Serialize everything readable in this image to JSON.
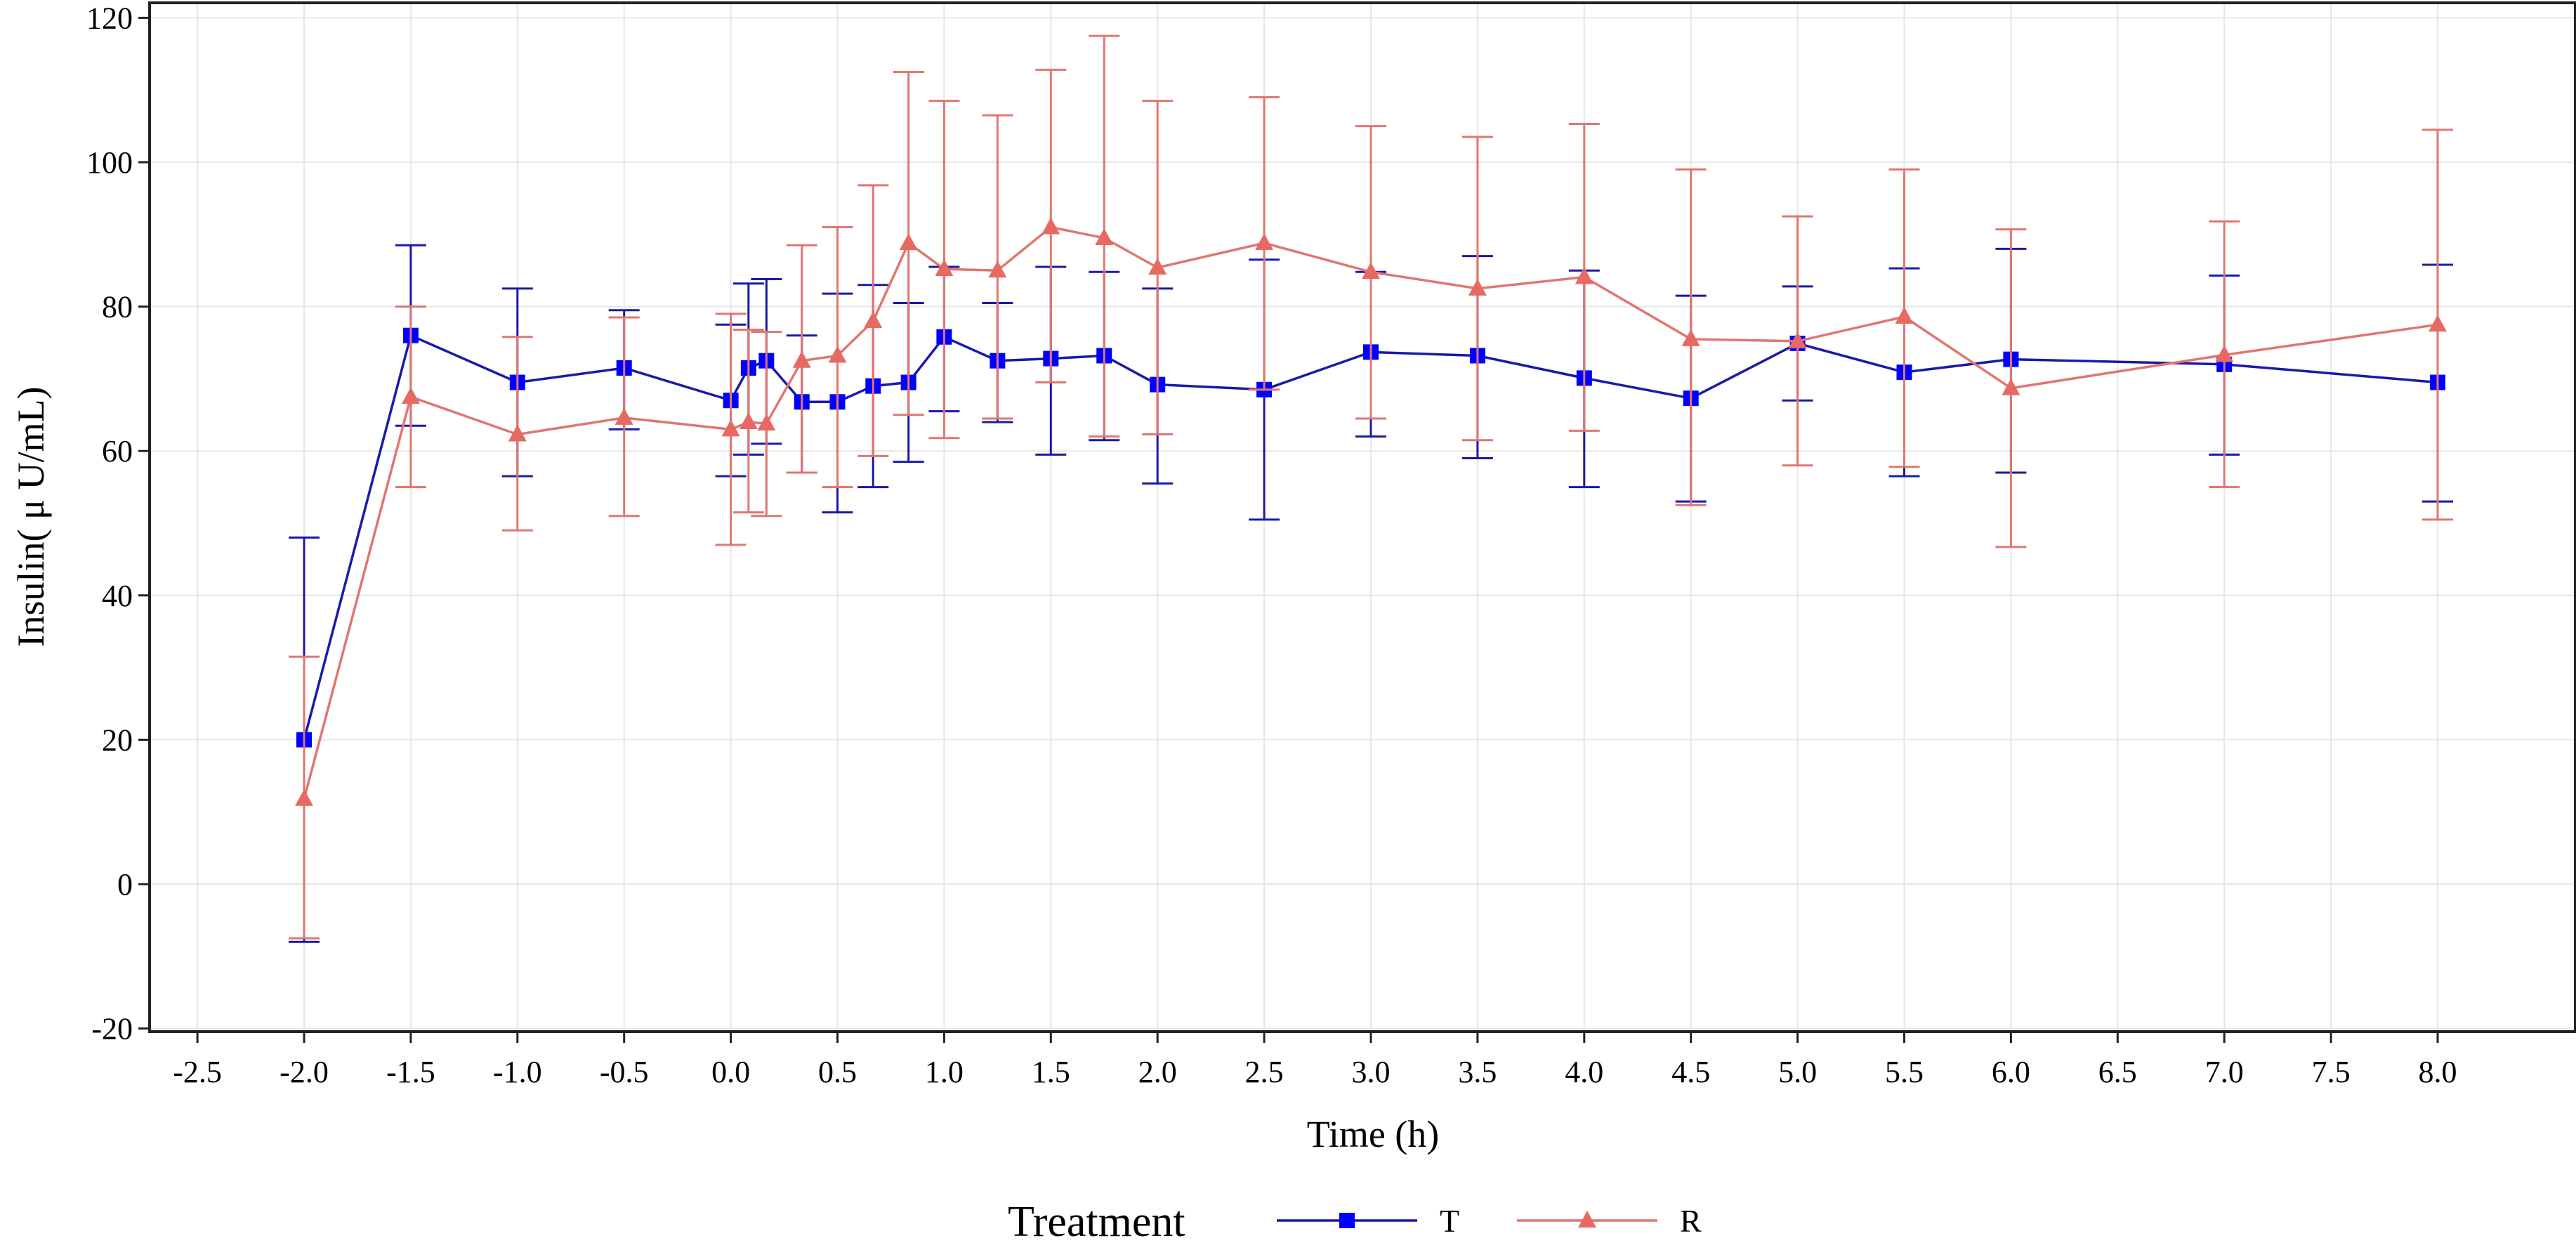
{
  "chart_data": {
    "type": "line",
    "title": "",
    "xlabel": "Time (h)",
    "ylabel": "Insulin( μ U/mL)",
    "xlim": [
      -2.5,
      8.5
    ],
    "ylim": [
      -20,
      120
    ],
    "x_ticks": [
      "-2.5",
      "-2.0",
      "-1.5",
      "-1.0",
      "-0.5",
      "0.0",
      "0.5",
      "1.0",
      "1.5",
      "2.0",
      "2.5",
      "3.0",
      "3.5",
      "4.0",
      "4.5",
      "5.0",
      "5.5",
      "6.0",
      "6.5",
      "7.0",
      "7.5",
      "8.0"
    ],
    "x_tick_values": [
      -2.5,
      -2.0,
      -1.5,
      -1.0,
      -0.5,
      0.0,
      0.5,
      1.0,
      1.5,
      2.0,
      2.5,
      3.0,
      3.5,
      4.0,
      4.5,
      5.0,
      5.5,
      6.0,
      6.5,
      7.0,
      7.5,
      8.0
    ],
    "y_ticks": [
      "-20",
      "0",
      "20",
      "40",
      "60",
      "80",
      "100",
      "120"
    ],
    "y_tick_values": [
      -20,
      0,
      20,
      40,
      60,
      80,
      100,
      120
    ],
    "grid": true,
    "legend": {
      "title": "Treatment",
      "position": "bottom-center"
    },
    "x": [
      -2.0,
      -1.5,
      -1.0,
      -0.5,
      0.0,
      0.083,
      0.167,
      0.333,
      0.5,
      0.667,
      0.833,
      1.0,
      1.25,
      1.5,
      1.75,
      2.0,
      2.5,
      3.0,
      3.5,
      4.0,
      4.5,
      5.0,
      5.5,
      6.0,
      7.0,
      8.0
    ],
    "series": [
      {
        "name": "T",
        "color": "#1a1aa8",
        "marker_color": "#0000ff",
        "marker": "square",
        "values": [
          20,
          76,
          69.5,
          71.5,
          67,
          71.5,
          72.5,
          66.8,
          66.8,
          69,
          69.5,
          75.8,
          72.5,
          72.8,
          73.2,
          69.2,
          68.5,
          73.7,
          73.2,
          70.1,
          67.3,
          74.9,
          70.9,
          72.7,
          72,
          69.5
        ],
        "error_low": [
          -8,
          63.5,
          56.5,
          63,
          56.5,
          59.5,
          61,
          57,
          51.5,
          55,
          58.5,
          65.5,
          64,
          59.5,
          61.5,
          55.5,
          50.5,
          62,
          59,
          55,
          53,
          67,
          56.5,
          57,
          59.5,
          53
        ],
        "error_high": [
          48,
          88.5,
          82.5,
          79.5,
          77.5,
          83.2,
          83.8,
          76,
          81.8,
          83,
          80.5,
          85.5,
          80.5,
          85.5,
          84.8,
          82.5,
          86.5,
          84.8,
          87,
          85,
          81.5,
          82.8,
          85.3,
          88,
          84.3,
          85.8
        ]
      },
      {
        "name": "R",
        "color": "#e07670",
        "marker_color": "#e66a63",
        "marker": "triangle",
        "values": [
          11.8,
          67.5,
          62.3,
          64.6,
          63,
          64,
          63.8,
          72.5,
          73.2,
          78,
          88.8,
          85.2,
          85,
          91,
          89.5,
          85.4,
          88.8,
          84.8,
          82.5,
          84.1,
          75.5,
          75.2,
          78.6,
          68.7,
          73.3,
          77.5
        ],
        "error_low": [
          -7.5,
          55,
          49,
          51,
          47,
          51.5,
          51,
          57,
          55,
          59.3,
          65,
          61.8,
          64.5,
          69.5,
          62,
          62.3,
          68.5,
          64.5,
          61.5,
          62.8,
          52.5,
          58,
          57.8,
          46.7,
          55,
          50.5
        ],
        "error_high": [
          31.5,
          80,
          75.8,
          78.5,
          79,
          76.8,
          76.5,
          88.5,
          91,
          96.8,
          112.5,
          108.5,
          106.5,
          112.8,
          117.5,
          108.5,
          109,
          105,
          103.5,
          105.3,
          99,
          92.5,
          99,
          90.7,
          91.8,
          104.5
        ]
      }
    ]
  }
}
